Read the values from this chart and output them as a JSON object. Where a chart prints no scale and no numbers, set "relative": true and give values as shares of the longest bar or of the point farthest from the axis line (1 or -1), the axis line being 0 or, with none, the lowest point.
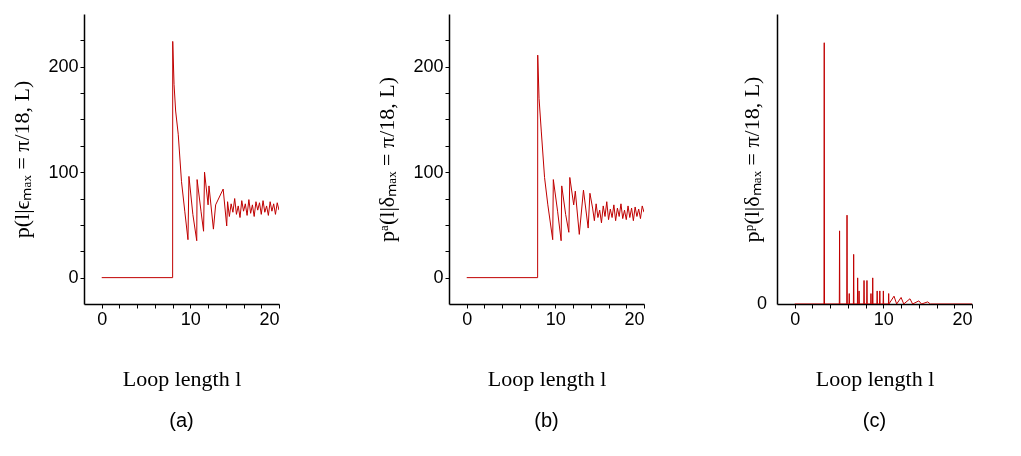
{
  "chart_data": [
    {
      "type": "line",
      "title": "(a)",
      "xlabel": "Loop length l",
      "ylabel": "p(l|ϵₘₐₓ = π/18, L)",
      "xlim": [
        -2,
        20
      ],
      "xticks": [
        0,
        {
          "value": 2,
          "label": null
        },
        {
          "value": 4,
          "label": null
        },
        {
          "value": 6,
          "label": null
        },
        {
          "value": 8,
          "label": null
        },
        10,
        {
          "value": 12,
          "label": null
        },
        {
          "value": 14,
          "label": null
        },
        {
          "value": 16,
          "label": null
        },
        {
          "value": 18,
          "label": null
        },
        20
      ],
      "ylim": [
        -25,
        250
      ],
      "yticks": [
        0,
        {
          "value": 25,
          "label": null
        },
        {
          "value": 50,
          "label": null
        },
        {
          "value": 75,
          "label": null
        },
        100,
        {
          "value": 125,
          "label": null
        },
        {
          "value": 150,
          "label": null
        },
        {
          "value": 175,
          "label": null
        },
        200,
        {
          "value": 225,
          "label": null
        }
      ],
      "series": [
        {
          "color": "#c00000",
          "x": [
            0,
            8,
            8.01,
            8.16,
            8.34,
            8.63,
            9.0,
            9.37,
            9.73,
            9.84,
            10.28,
            10.72,
            10.76,
            11.2,
            11.49,
            11.6,
            12.0,
            12.1,
            12.6,
            12.85,
            13.7,
            14.1,
            14.2,
            14.4,
            14.6,
            14.8,
            15.0,
            15.2,
            15.4,
            15.6,
            15.8,
            16.0,
            16.2,
            16.4,
            16.6,
            16.8,
            17.0,
            17.2,
            17.4,
            17.6,
            17.8,
            18.0,
            18.2,
            18.4,
            18.6,
            18.8,
            19.0,
            19.2,
            19.4,
            19.6,
            19.8,
            20.0
          ],
          "values": [
            0,
            0,
            224,
            183,
            158,
            136,
            91,
            63,
            36,
            96,
            60,
            35,
            93,
            63,
            44,
            100,
            69,
            87,
            46,
            69,
            84,
            49,
            72,
            58,
            70,
            62,
            75,
            60,
            68,
            57,
            73,
            63,
            70,
            59,
            74,
            61,
            69,
            58,
            72,
            64,
            71,
            60,
            73,
            62,
            68,
            59,
            72,
            63,
            70,
            60,
            71,
            64
          ]
        }
      ]
    },
    {
      "type": "line",
      "title": "(b)",
      "xlabel": "Loop length l",
      "ylabel": "pᵃ(l|δₘₐₓ = π/18, L)",
      "xlim": [
        -2,
        20
      ],
      "xticks": [
        0,
        {
          "value": 2,
          "label": null
        },
        {
          "value": 4,
          "label": null
        },
        {
          "value": 6,
          "label": null
        },
        {
          "value": 8,
          "label": null
        },
        10,
        {
          "value": 12,
          "label": null
        },
        {
          "value": 14,
          "label": null
        },
        {
          "value": 16,
          "label": null
        },
        {
          "value": 18,
          "label": null
        },
        20
      ],
      "ylim": [
        -25,
        250
      ],
      "yticks": [
        0,
        {
          "value": 25,
          "label": null
        },
        {
          "value": 50,
          "label": null
        },
        {
          "value": 75,
          "label": null
        },
        100,
        {
          "value": 125,
          "label": null
        },
        {
          "value": 150,
          "label": null
        },
        {
          "value": 175,
          "label": null
        },
        200,
        {
          "value": 225,
          "label": null
        }
      ],
      "series": [
        {
          "color": "#c00000",
          "x": [
            0,
            8,
            8.01,
            8.16,
            8.41,
            8.78,
            9.15,
            9.7,
            9.77,
            10.25,
            10.65,
            10.72,
            11.16,
            11.52,
            11.63,
            12.07,
            12.25,
            12.7,
            13.17,
            13.7,
            13.9,
            14.2,
            14.4,
            14.6,
            14.8,
            15.0,
            15.2,
            15.4,
            15.6,
            15.8,
            16.0,
            16.2,
            16.4,
            16.6,
            16.8,
            17.0,
            17.2,
            17.4,
            17.6,
            17.8,
            18.0,
            18.2,
            18.4,
            18.6,
            18.8,
            19.0,
            19.2,
            19.4,
            19.6,
            19.8,
            20.0
          ],
          "values": [
            0,
            0,
            211,
            170,
            139,
            95,
            69,
            36,
            93,
            63,
            35,
            87,
            60,
            43,
            95,
            69,
            82,
            41,
            83,
            47,
            80,
            66,
            54,
            70,
            57,
            64,
            52,
            68,
            58,
            72,
            55,
            65,
            57,
            69,
            54,
            66,
            58,
            70,
            56,
            64,
            55,
            68,
            57,
            66,
            54,
            67,
            58,
            65,
            56,
            68,
            62
          ]
        }
      ]
    },
    {
      "type": "line",
      "relative": true,
      "annotations": [
        "0"
      ],
      "title": "(c)",
      "xlabel": "Loop length l",
      "ylabel": "pᵖ(l|δₘₐₓ = π/18, L)",
      "xlim": [
        -2,
        20
      ],
      "xticks": [
        0,
        {
          "value": 2,
          "label": null
        },
        {
          "value": 4,
          "label": null
        },
        {
          "value": 6,
          "label": null
        },
        {
          "value": 8,
          "label": null
        },
        10,
        {
          "value": 12,
          "label": null
        },
        {
          "value": 14,
          "label": null
        },
        {
          "value": 16,
          "label": null
        },
        {
          "value": 18,
          "label": null
        },
        20
      ],
      "series": [
        {
          "color": "#c00000",
          "x": [
            0,
            3.3,
            3.33,
            3.36,
            5.03,
            5.06,
            5.09,
            5.87,
            5.9,
            5.93,
            6.12,
            6.15,
            6.18,
            6.62,
            6.65,
            6.68,
            7.07,
            7.1,
            7.13,
            7.23,
            7.26,
            7.29,
            7.79,
            7.82,
            7.85,
            8.12,
            8.15,
            8.18,
            8.57,
            8.6,
            8.63,
            8.77,
            8.8,
            8.83,
            9.27,
            9.3,
            9.33,
            9.57,
            9.6,
            9.63,
            9.97,
            10,
            10.03,
            10.57,
            10.6,
            10.63,
            11.2,
            11.5,
            12,
            12.3,
            13,
            13.3,
            14,
            14.3,
            15,
            15.3,
            20
          ],
          "values": [
            0,
            0,
            1,
            0,
            0,
            0.28,
            0,
            0,
            0.34,
            0,
            0,
            0.04,
            0,
            0,
            0.19,
            0,
            0,
            0.1,
            0,
            0,
            0.05,
            0,
            0,
            0.09,
            0,
            0,
            0.09,
            0,
            0,
            0.04,
            0,
            0,
            0.1,
            0,
            0,
            0.05,
            0,
            0,
            0.05,
            0,
            0,
            0.05,
            0,
            0,
            0.04,
            0,
            0.03,
            0,
            0.025,
            0,
            0.02,
            0,
            0.012,
            0,
            0.008,
            0,
            0
          ]
        }
      ]
    }
  ]
}
